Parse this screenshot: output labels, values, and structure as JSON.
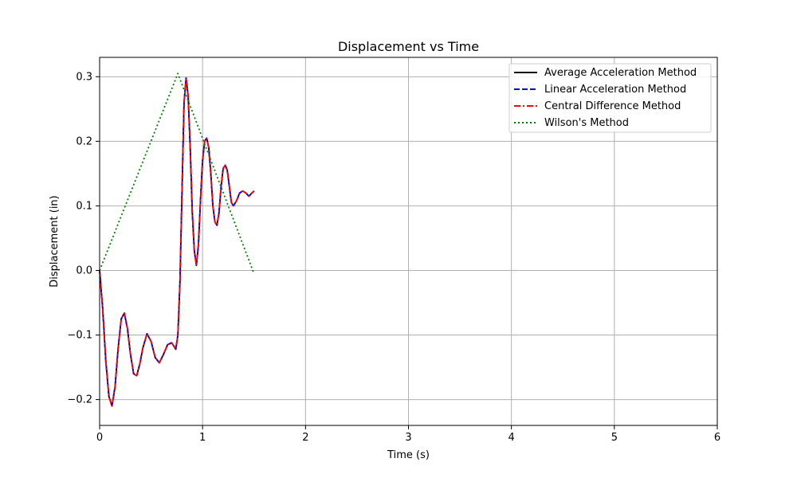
{
  "chart_data": {
    "type": "line",
    "title": "Displacement vs Time",
    "xlabel": "Time (s)",
    "ylabel": "Displacement (in)",
    "xlim": [
      0,
      6
    ],
    "ylim": [
      -0.24,
      0.33
    ],
    "xticks": [
      0,
      1,
      2,
      3,
      4,
      5,
      6
    ],
    "yticks": [
      -0.2,
      -0.1,
      0.0,
      0.1,
      0.2,
      0.3
    ],
    "xtick_labels": [
      "0",
      "1",
      "2",
      "3",
      "4",
      "5",
      "6"
    ],
    "ytick_labels": [
      "−0.2",
      "−0.1",
      "0.0",
      "0.1",
      "0.2",
      "0.3"
    ],
    "grid": true,
    "legend_position": "top-right",
    "series": [
      {
        "name": "Average Acceleration Method",
        "color": "#000000",
        "style": "solid",
        "x": [
          0,
          0.03,
          0.06,
          0.09,
          0.12,
          0.15,
          0.18,
          0.21,
          0.24,
          0.27,
          0.3,
          0.33,
          0.36,
          0.39,
          0.42,
          0.46,
          0.5,
          0.54,
          0.58,
          0.62,
          0.66,
          0.7,
          0.74,
          0.76,
          0.78,
          0.8,
          0.82,
          0.84,
          0.86,
          0.88,
          0.9,
          0.92,
          0.94,
          0.96,
          0.98,
          1.0,
          1.02,
          1.04,
          1.06,
          1.08,
          1.1,
          1.12,
          1.14,
          1.16,
          1.18,
          1.2,
          1.22,
          1.24,
          1.26,
          1.28,
          1.3,
          1.33,
          1.36,
          1.39,
          1.42,
          1.45,
          1.48,
          1.5
        ],
        "y": [
          0,
          -0.06,
          -0.14,
          -0.195,
          -0.21,
          -0.18,
          -0.12,
          -0.075,
          -0.066,
          -0.09,
          -0.13,
          -0.16,
          -0.163,
          -0.145,
          -0.12,
          -0.098,
          -0.11,
          -0.135,
          -0.143,
          -0.13,
          -0.115,
          -0.112,
          -0.122,
          -0.1,
          -0.02,
          0.12,
          0.26,
          0.298,
          0.27,
          0.19,
          0.09,
          0.03,
          0.008,
          0.04,
          0.11,
          0.17,
          0.2,
          0.205,
          0.19,
          0.15,
          0.1,
          0.075,
          0.07,
          0.09,
          0.13,
          0.158,
          0.163,
          0.155,
          0.13,
          0.105,
          0.1,
          0.108,
          0.12,
          0.123,
          0.12,
          0.115,
          0.12,
          0.123
        ]
      },
      {
        "name": "Linear Acceleration Method",
        "color": "#0000ff",
        "style": "dashed",
        "x": [
          0,
          0.03,
          0.06,
          0.09,
          0.12,
          0.15,
          0.18,
          0.21,
          0.24,
          0.27,
          0.3,
          0.33,
          0.36,
          0.39,
          0.42,
          0.46,
          0.5,
          0.54,
          0.58,
          0.62,
          0.66,
          0.7,
          0.74,
          0.76,
          0.78,
          0.8,
          0.82,
          0.84,
          0.86,
          0.88,
          0.9,
          0.92,
          0.94,
          0.96,
          0.98,
          1.0,
          1.02,
          1.04,
          1.06,
          1.08,
          1.1,
          1.12,
          1.14,
          1.16,
          1.18,
          1.2,
          1.22,
          1.24,
          1.26,
          1.28,
          1.3,
          1.33,
          1.36,
          1.39,
          1.42,
          1.45,
          1.48,
          1.5
        ],
        "y": [
          0,
          -0.06,
          -0.14,
          -0.195,
          -0.21,
          -0.18,
          -0.12,
          -0.075,
          -0.066,
          -0.09,
          -0.13,
          -0.16,
          -0.163,
          -0.145,
          -0.12,
          -0.098,
          -0.11,
          -0.135,
          -0.143,
          -0.13,
          -0.115,
          -0.112,
          -0.122,
          -0.1,
          -0.02,
          0.12,
          0.26,
          0.298,
          0.27,
          0.19,
          0.09,
          0.03,
          0.008,
          0.04,
          0.11,
          0.17,
          0.2,
          0.205,
          0.19,
          0.15,
          0.1,
          0.075,
          0.07,
          0.09,
          0.13,
          0.158,
          0.163,
          0.155,
          0.13,
          0.105,
          0.1,
          0.108,
          0.12,
          0.123,
          0.12,
          0.115,
          0.12,
          0.123
        ]
      },
      {
        "name": "Central Difference Method",
        "color": "#ff0000",
        "style": "dashdot",
        "x": [
          0,
          0.03,
          0.06,
          0.09,
          0.12,
          0.15,
          0.18,
          0.21,
          0.24,
          0.27,
          0.3,
          0.33,
          0.36,
          0.39,
          0.42,
          0.46,
          0.5,
          0.54,
          0.58,
          0.62,
          0.66,
          0.7,
          0.74,
          0.76,
          0.78,
          0.8,
          0.82,
          0.84,
          0.86,
          0.88,
          0.9,
          0.92,
          0.94,
          0.96,
          0.98,
          1.0,
          1.02,
          1.04,
          1.06,
          1.08,
          1.1,
          1.12,
          1.14,
          1.16,
          1.18,
          1.2,
          1.22,
          1.24,
          1.26,
          1.28,
          1.3,
          1.33,
          1.36,
          1.39,
          1.42,
          1.45,
          1.48,
          1.5
        ],
        "y": [
          0,
          -0.06,
          -0.14,
          -0.195,
          -0.21,
          -0.18,
          -0.12,
          -0.075,
          -0.066,
          -0.09,
          -0.13,
          -0.16,
          -0.163,
          -0.145,
          -0.12,
          -0.098,
          -0.11,
          -0.135,
          -0.143,
          -0.13,
          -0.115,
          -0.112,
          -0.122,
          -0.1,
          -0.02,
          0.12,
          0.26,
          0.298,
          0.27,
          0.19,
          0.09,
          0.03,
          0.008,
          0.04,
          0.11,
          0.17,
          0.2,
          0.205,
          0.19,
          0.15,
          0.1,
          0.075,
          0.07,
          0.09,
          0.13,
          0.158,
          0.163,
          0.155,
          0.13,
          0.105,
          0.1,
          0.108,
          0.12,
          0.123,
          0.12,
          0.115,
          0.12,
          0.123
        ]
      },
      {
        "name": "Wilson's Method",
        "color": "#008000",
        "style": "dotted",
        "x": [
          0,
          0.76,
          1.5
        ],
        "y": [
          0,
          0.305,
          -0.005
        ]
      }
    ]
  }
}
